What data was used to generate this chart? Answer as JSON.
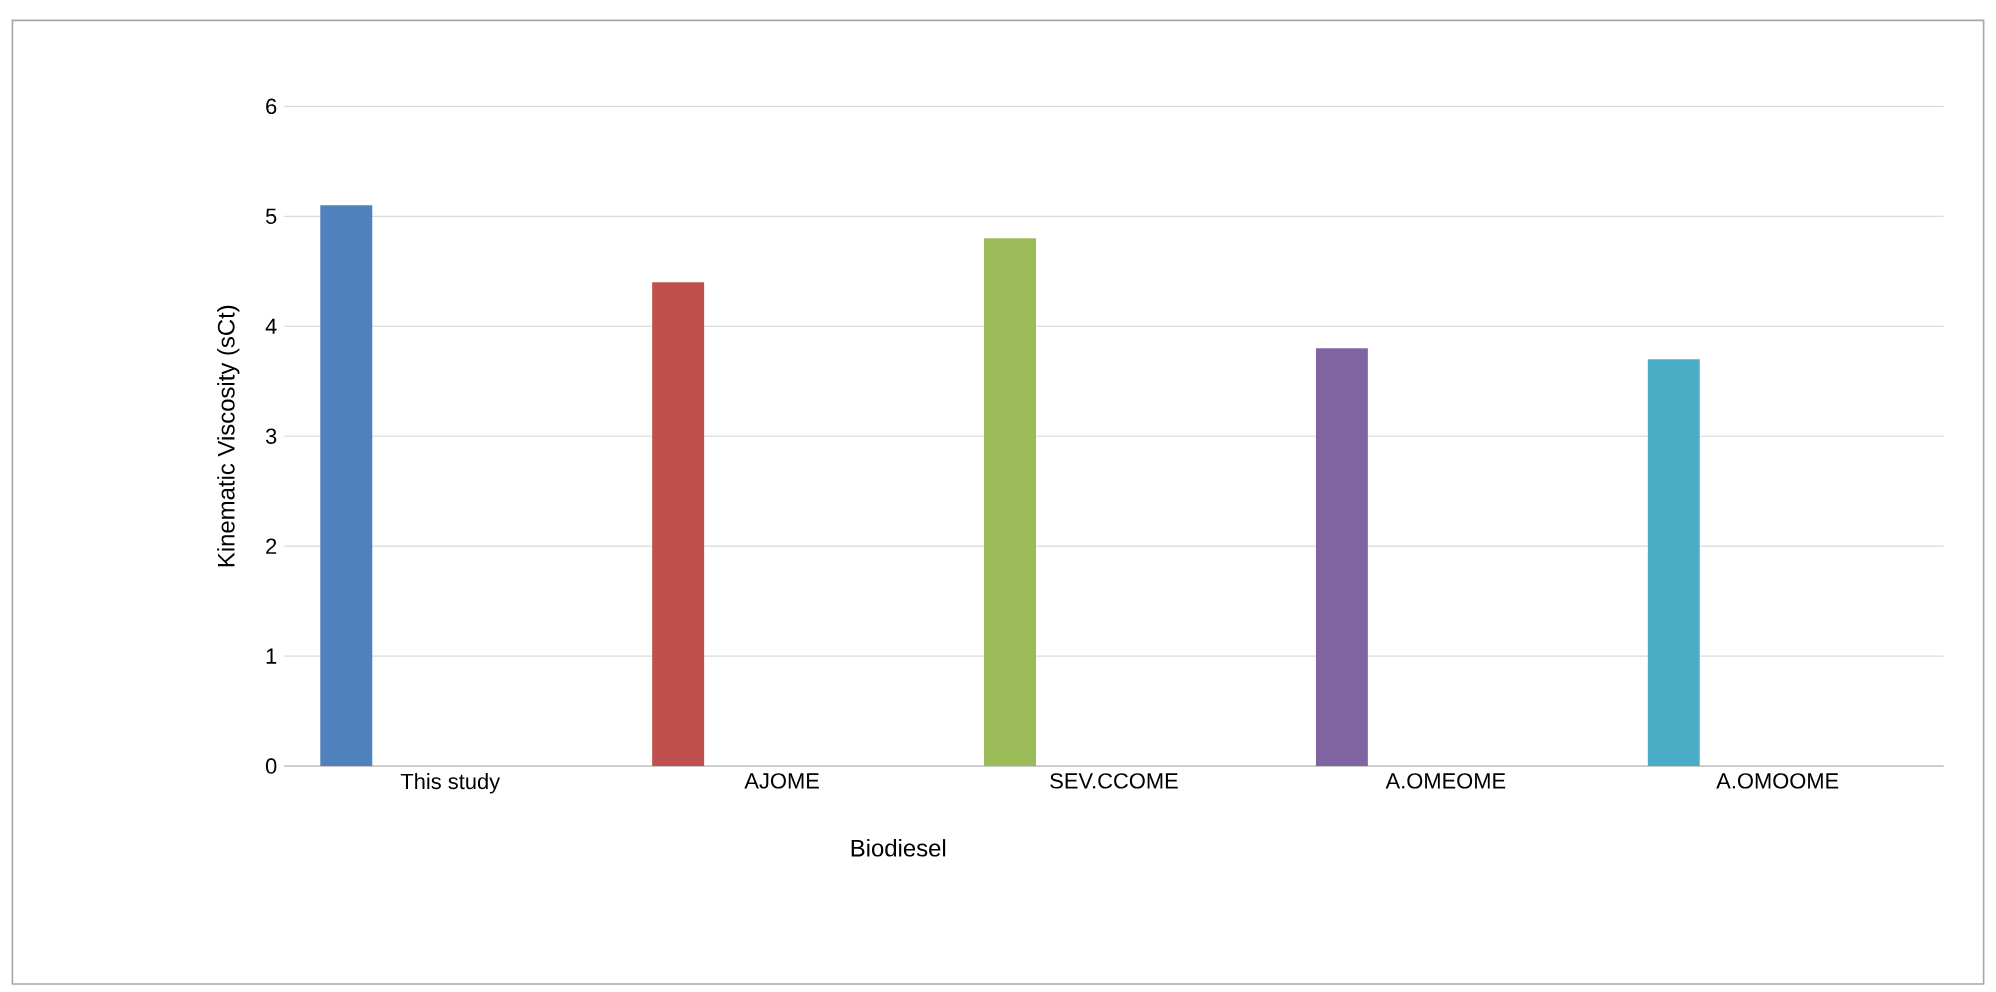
{
  "chart_data": {
    "type": "bar",
    "xlabel": "Biodiesel",
    "ylabel": "Kinematic Viscosity (sCt)",
    "categories": [
      "This study",
      "AJOME",
      "SEV.CCOME",
      "A.OMEOME",
      "A.OMOOME"
    ],
    "values": [
      5.1,
      4.4,
      4.8,
      3.8,
      3.7
    ],
    "colors": [
      "#4f81bd",
      "#c0504d",
      "#9bbb59",
      "#8064a2",
      "#4bacc6"
    ],
    "ylim": [
      0,
      6
    ],
    "yticks": [
      0,
      1,
      2,
      3,
      4,
      5,
      6
    ],
    "grid": "y"
  }
}
